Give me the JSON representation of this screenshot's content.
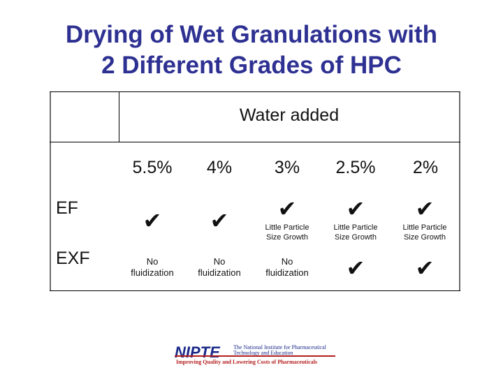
{
  "title": {
    "line1": "Drying of Wet Granulations with",
    "line2": "2 Different Grades of HPC"
  },
  "table": {
    "header": "Water added",
    "columns": [
      "5.5%",
      "4%",
      "3%",
      "2.5%",
      "2%"
    ],
    "rows": [
      {
        "label": "EF",
        "cells": [
          {
            "check": "✔",
            "note": ""
          },
          {
            "check": "✔",
            "note": ""
          },
          {
            "check": "✔",
            "note": "Little Particle Size Growth"
          },
          {
            "check": "✔",
            "note": "Little Particle Size Growth"
          },
          {
            "check": "✔",
            "note": "Little Particle Size Growth"
          }
        ]
      },
      {
        "label": "EXF",
        "cells": [
          {
            "check": "",
            "note": "No fluidization"
          },
          {
            "check": "",
            "note": "No fluidization"
          },
          {
            "check": "",
            "note": "No fluidization"
          },
          {
            "check": "✔",
            "note": ""
          },
          {
            "check": "✔",
            "note": ""
          }
        ]
      }
    ]
  },
  "logo": {
    "name": "NIPTE",
    "institute": "The National Institute for Pharmaceutical Technology and Education",
    "tagline": "Improving Quality and Lowering Costs of Pharmaceuticals"
  }
}
